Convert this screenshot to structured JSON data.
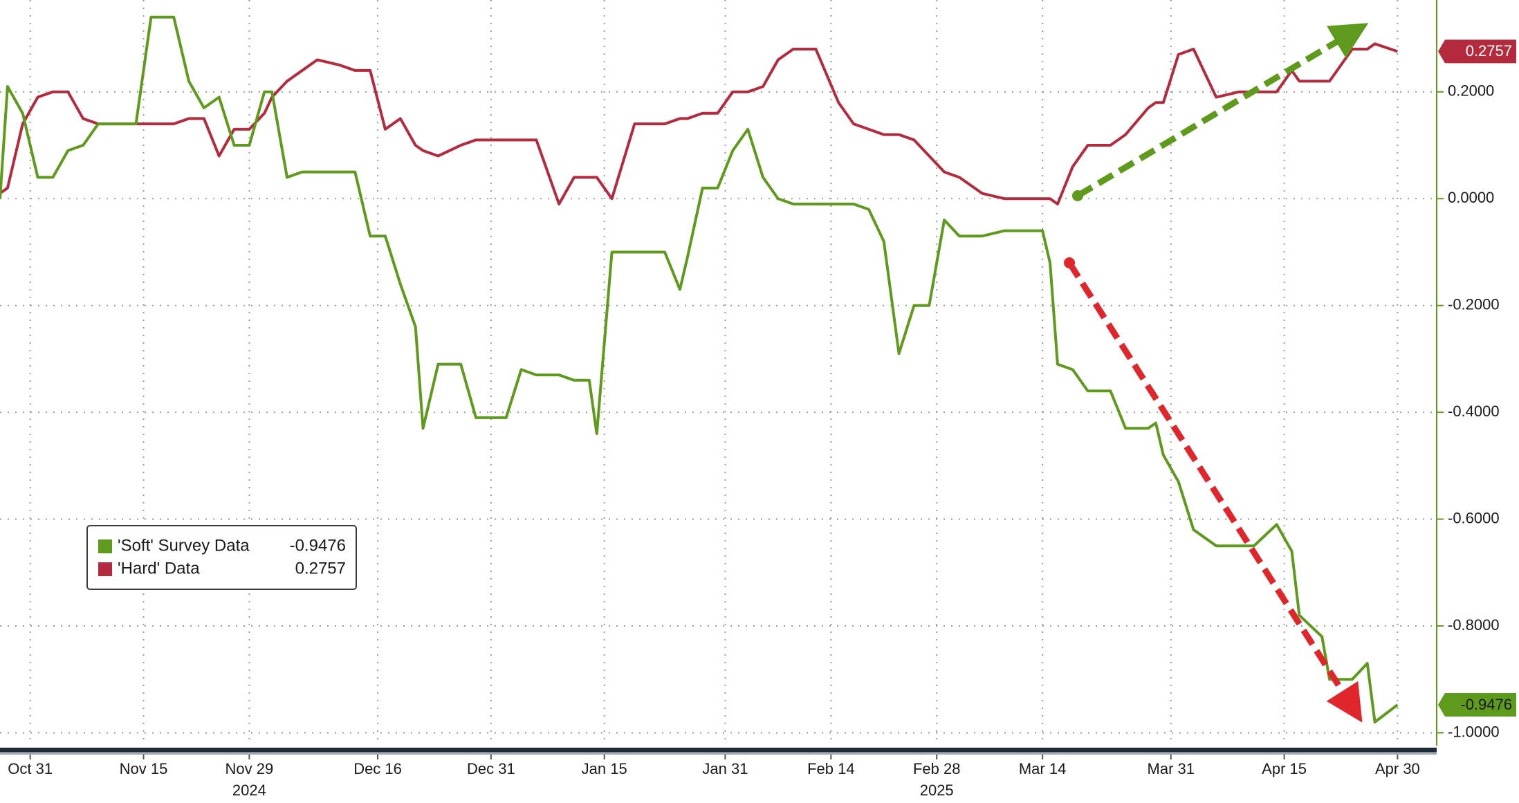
{
  "chart_data": {
    "type": "line",
    "x": [
      "2024-10-27",
      "2024-10-28",
      "2024-10-30",
      "2024-11-01",
      "2024-11-03",
      "2024-11-05",
      "2024-11-07",
      "2024-11-09",
      "2024-11-12",
      "2024-11-14",
      "2024-11-16",
      "2024-11-19",
      "2024-11-21",
      "2024-11-23",
      "2024-11-25",
      "2024-11-27",
      "2024-11-29",
      "2024-12-01",
      "2024-12-02",
      "2024-12-04",
      "2024-12-06",
      "2024-12-08",
      "2024-12-11",
      "2024-12-13",
      "2024-12-15",
      "2024-12-17",
      "2024-12-19",
      "2024-12-21",
      "2024-12-22",
      "2024-12-24",
      "2024-12-27",
      "2024-12-29",
      "2024-12-31",
      "2025-01-02",
      "2025-01-04",
      "2025-01-06",
      "2025-01-09",
      "2025-01-11",
      "2025-01-13",
      "2025-01-14",
      "2025-01-16",
      "2025-01-19",
      "2025-01-21",
      "2025-01-23",
      "2025-01-25",
      "2025-01-26",
      "2025-01-28",
      "2025-01-30",
      "2025-02-01",
      "2025-02-03",
      "2025-02-05",
      "2025-02-07",
      "2025-02-09",
      "2025-02-12",
      "2025-02-15",
      "2025-02-17",
      "2025-02-19",
      "2025-02-21",
      "2025-02-23",
      "2025-02-25",
      "2025-02-27",
      "2025-03-01",
      "2025-03-03",
      "2025-03-06",
      "2025-03-09",
      "2025-03-12",
      "2025-03-14",
      "2025-03-15",
      "2025-03-16",
      "2025-03-18",
      "2025-03-20",
      "2025-03-23",
      "2025-03-25",
      "2025-03-28",
      "2025-03-29",
      "2025-03-30",
      "2025-04-01",
      "2025-04-03",
      "2025-04-06",
      "2025-04-09",
      "2025-04-11",
      "2025-04-14",
      "2025-04-16",
      "2025-04-17",
      "2025-04-20",
      "2025-04-21",
      "2025-04-24",
      "2025-04-26",
      "2025-04-27",
      "2025-04-30"
    ],
    "series": [
      {
        "name": "'Soft' Survey Data",
        "color": "#5e9a1c",
        "badge_text_color": "#1a1a1a",
        "values": [
          0.0,
          0.21,
          0.16,
          0.04,
          0.04,
          0.09,
          0.1,
          0.14,
          0.14,
          0.14,
          0.34,
          0.34,
          0.22,
          0.17,
          0.19,
          0.1,
          0.1,
          0.2,
          0.2,
          0.04,
          0.05,
          0.05,
          0.05,
          0.05,
          -0.07,
          -0.07,
          -0.16,
          -0.24,
          -0.43,
          -0.31,
          -0.31,
          -0.41,
          -0.41,
          -0.41,
          -0.32,
          -0.33,
          -0.33,
          -0.34,
          -0.34,
          -0.44,
          -0.1,
          -0.1,
          -0.1,
          -0.1,
          -0.17,
          -0.11,
          0.02,
          0.02,
          0.09,
          0.13,
          0.04,
          0.0,
          -0.01,
          -0.01,
          -0.01,
          -0.01,
          -0.02,
          -0.08,
          -0.29,
          -0.2,
          -0.2,
          -0.04,
          -0.07,
          -0.07,
          -0.06,
          -0.06,
          -0.06,
          -0.12,
          -0.31,
          -0.32,
          -0.36,
          -0.36,
          -0.43,
          -0.43,
          -0.42,
          -0.48,
          -0.53,
          -0.62,
          -0.65,
          -0.65,
          -0.65,
          -0.61,
          -0.66,
          -0.78,
          -0.82,
          -0.9,
          -0.9,
          -0.87,
          -0.98,
          -0.9476
        ]
      },
      {
        "name": "'Hard' Data",
        "color": "#b52a3c",
        "badge_text_color": "#ffffff",
        "values": [
          0.01,
          0.02,
          0.14,
          0.19,
          0.2,
          0.2,
          0.15,
          0.14,
          0.14,
          0.14,
          0.14,
          0.14,
          0.15,
          0.15,
          0.08,
          0.13,
          0.13,
          0.16,
          0.19,
          0.22,
          0.24,
          0.26,
          0.25,
          0.24,
          0.24,
          0.13,
          0.15,
          0.1,
          0.09,
          0.08,
          0.1,
          0.11,
          0.11,
          0.11,
          0.11,
          0.11,
          -0.01,
          0.04,
          0.04,
          0.04,
          0.0,
          0.14,
          0.14,
          0.14,
          0.15,
          0.15,
          0.16,
          0.16,
          0.2,
          0.2,
          0.21,
          0.26,
          0.28,
          0.28,
          0.18,
          0.14,
          0.13,
          0.12,
          0.12,
          0.11,
          0.08,
          0.05,
          0.04,
          0.01,
          0.0,
          0.0,
          0.0,
          0.0,
          -0.01,
          0.06,
          0.1,
          0.1,
          0.12,
          0.17,
          0.18,
          0.18,
          0.27,
          0.28,
          0.19,
          0.2,
          0.2,
          0.2,
          0.24,
          0.22,
          0.22,
          0.22,
          0.28,
          0.28,
          0.29,
          0.2757
        ]
      }
    ],
    "xlim": [
      "2024-10-27",
      "2025-05-05"
    ],
    "xticks": [
      {
        "value": "2024-10-31",
        "label": "Oct 31"
      },
      {
        "value": "2024-11-15",
        "label": "Nov 15"
      },
      {
        "value": "2024-11-29",
        "label": "Nov 29"
      },
      {
        "value": "2024-12-16",
        "label": "Dec 16"
      },
      {
        "value": "2024-12-31",
        "label": "Dec 31"
      },
      {
        "value": "2025-01-15",
        "label": "Jan 15"
      },
      {
        "value": "2025-01-31",
        "label": "Jan 31"
      },
      {
        "value": "2025-02-14",
        "label": "Feb 14"
      },
      {
        "value": "2025-02-28",
        "label": "Feb 28"
      },
      {
        "value": "2025-03-14",
        "label": "Mar 14"
      },
      {
        "value": "2025-03-31",
        "label": "Mar 31"
      },
      {
        "value": "2025-04-15",
        "label": "Apr 15"
      },
      {
        "value": "2025-04-30",
        "label": "Apr 30"
      }
    ],
    "year_labels": [
      {
        "value": "2024-11-29",
        "label": "2024"
      },
      {
        "value": "2025-02-28",
        "label": "2025"
      }
    ],
    "ylim": [
      -1.024,
      0.372
    ],
    "yticks": [
      {
        "value": 0.2,
        "label": "0.2000"
      },
      {
        "value": 0,
        "label": "0.0000"
      },
      {
        "value": -0.2,
        "label": "-0.2000"
      },
      {
        "value": -0.4,
        "label": "-0.4000"
      },
      {
        "value": -0.6,
        "label": "-0.6000"
      },
      {
        "value": -0.8,
        "label": "-0.8000"
      },
      {
        "value": -1,
        "label": "-1.0000"
      }
    ],
    "grid": true,
    "legend": "lower left",
    "axis_color": "#5e9a1c"
  }
}
